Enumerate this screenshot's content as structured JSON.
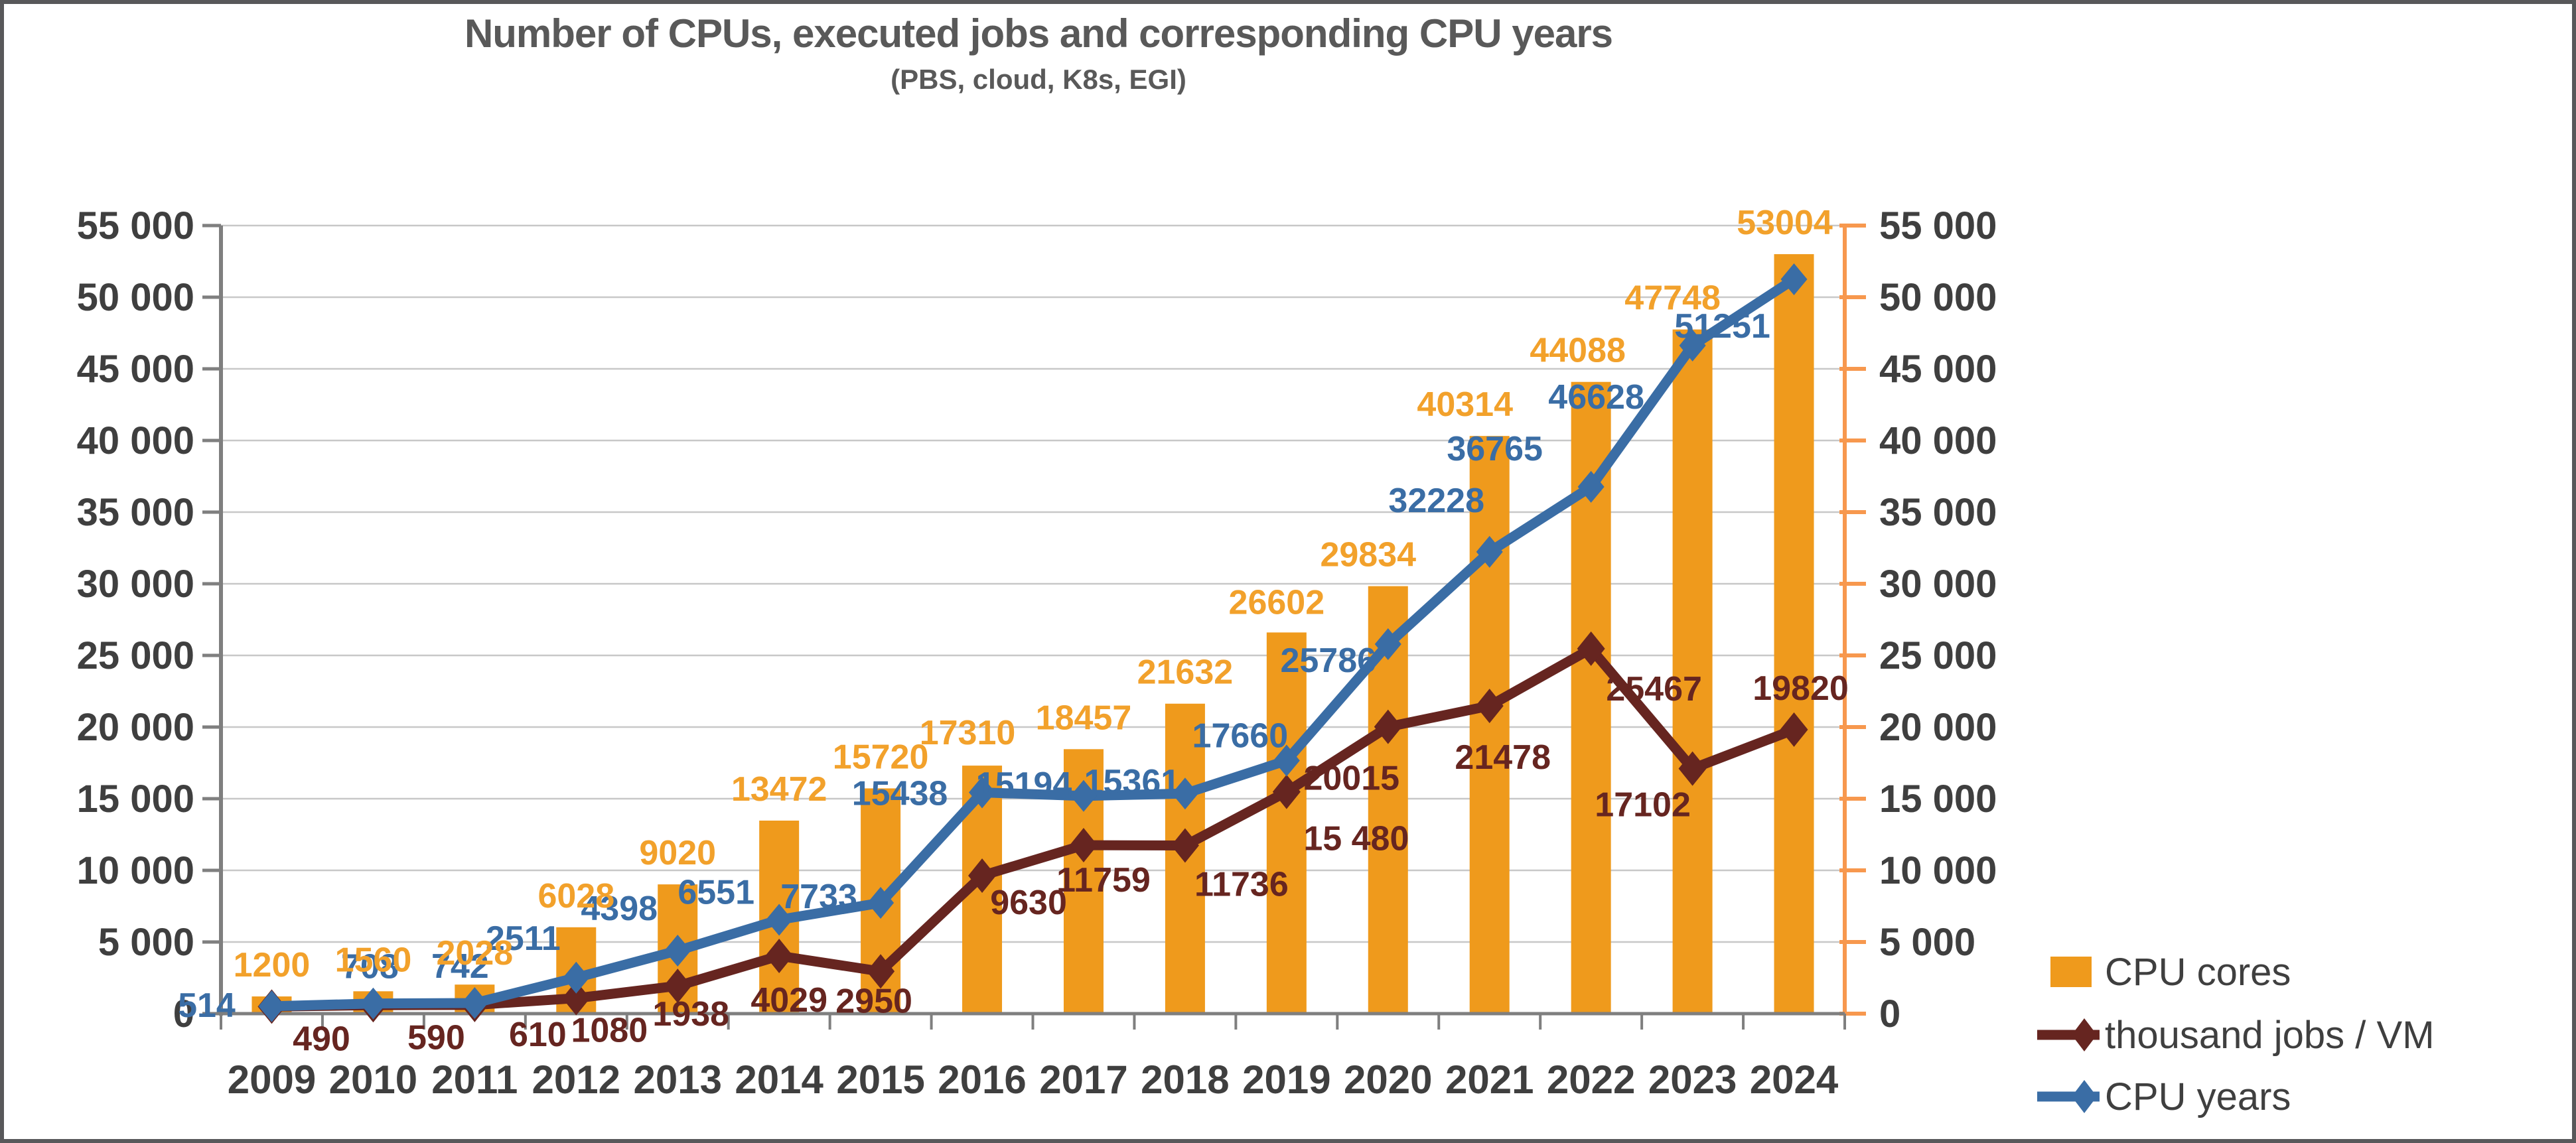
{
  "chart_data": {
    "type": "combo-bar-line",
    "title": "Number of CPUs, executed jobs and corresponding CPU years",
    "subtitle": "(PBS, cloud, K8s, EGI)",
    "categories": [
      "2009",
      "2010",
      "2011",
      "2012",
      "2013",
      "2014",
      "2015",
      "2016",
      "2017",
      "2018",
      "2019",
      "2020",
      "2021",
      "2022",
      "2023",
      "2024"
    ],
    "series": [
      {
        "name": "CPU cores",
        "type": "bar",
        "color": "#ef9a1c",
        "label_color": "#f2a12b",
        "values": [
          1200,
          1560,
          2028,
          6028,
          9020,
          13472,
          15720,
          17310,
          18457,
          21632,
          26602,
          29834,
          40314,
          44088,
          47748,
          53004
        ],
        "labels": [
          "1200",
          "1560",
          "2028",
          "6028",
          "9020",
          "13472",
          "15720",
          "17310",
          "18457",
          "21632",
          "26602",
          "29834",
          "40314",
          "44088",
          "47748",
          "53004"
        ]
      },
      {
        "name": "thousand jobs / VM",
        "type": "line",
        "color": "#662520",
        "label_color": "#662520",
        "values": [
          490,
          590,
          610,
          1080,
          1938,
          4029,
          2950,
          9630,
          11759,
          11736,
          15480,
          20015,
          21478,
          25467,
          17102,
          19820
        ],
        "labels": [
          "490",
          "590",
          "610",
          "1080",
          "1938",
          "4029",
          "2950",
          "9630",
          "11759",
          "11736",
          "15 480",
          "20015",
          "21478",
          "25467",
          "17102",
          "19820"
        ]
      },
      {
        "name": "CPU years",
        "type": "line",
        "color": "#3a6da5",
        "label_color": "#3a6da5",
        "values": [
          514,
          708,
          742,
          2511,
          4398,
          6551,
          7733,
          15438,
          15194,
          15361,
          17660,
          25786,
          32228,
          36765,
          46628,
          51251
        ],
        "labels": [
          "514",
          "708",
          "742",
          "2511",
          "4398",
          "6551",
          "7733",
          "15438",
          "15194",
          "15361",
          "17660",
          "25786",
          "32228",
          "36765",
          "46628",
          "51251"
        ]
      }
    ],
    "y_axis_left": {
      "min": 0,
      "max": 55000,
      "step": 5000,
      "tick_labels": [
        "0",
        "5 000",
        "10 000",
        "15 000",
        "20 000",
        "25 000",
        "30 000",
        "35 000",
        "40 000",
        "45 000",
        "50 000",
        "55 000"
      ]
    },
    "y_axis_right": {
      "min": 0,
      "max": 55000,
      "step": 5000,
      "tick_labels": [
        "0",
        "5 000",
        "10 000",
        "15 000",
        "20 000",
        "25 000",
        "30 000",
        "35 000",
        "40 000",
        "45 000",
        "50 000",
        "55 000"
      ]
    },
    "legend": {
      "position": "bottom-right",
      "entries": [
        "CPU cores",
        "thousand jobs / VM",
        "CPU years"
      ]
    },
    "colors": {
      "grid": "#c8c8c8",
      "axis_gray": "#7f7f7f",
      "axis_right_orange": "#f7984e",
      "tick_text": "#3f3f3f",
      "title_text": "#595959",
      "legend_text": "#3f3f3f",
      "background": "#ffffff",
      "border": "#58585a"
    }
  }
}
